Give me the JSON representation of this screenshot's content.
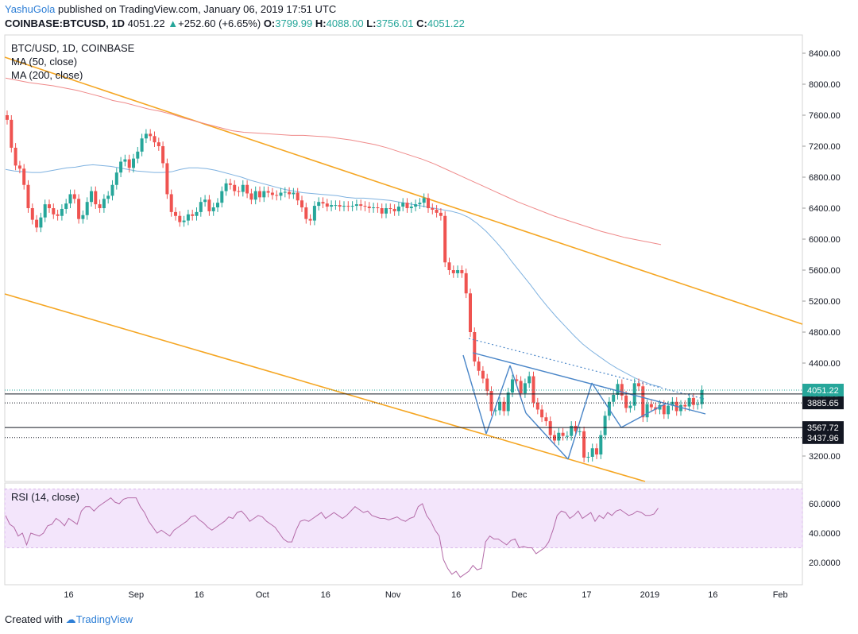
{
  "header": {
    "author": "YashuGola",
    "published_text": "published on TradingView.com, January 06, 2019 17:51 UTC",
    "symbol": "COINBASE:BTCUSD,",
    "timeframe": "1D",
    "last": "4051.22",
    "change": "+252.60 (+6.65%)",
    "o_label": "O:",
    "o": "3799.99",
    "h_label": "H:",
    "h": "4088.00",
    "l_label": "L:",
    "l": "3756.01",
    "c_label": "C:",
    "c": "4051.22"
  },
  "legend": {
    "title": "BTC/USD, 1D, COINBASE",
    "ma50": "MA (50, close)",
    "ma200": "MA (200, close)",
    "rsi": "RSI (14, close)"
  },
  "footer": {
    "created_with": "Created with",
    "brand": "TradingView"
  },
  "colors": {
    "up": "#26a69a",
    "down": "#ef5350",
    "channel": "#f5a623",
    "ma50": "#7fb2e0",
    "ma200": "#ef8a8a",
    "pattern": "#4a86c8",
    "rsi_line": "#b46ba8",
    "rsi_band": "#f3e5fb",
    "price_tag": "#26a69a"
  },
  "chart_data": {
    "type": "candlestick",
    "price_axis": {
      "ticks": [
        "8400.00",
        "8000.00",
        "7600.00",
        "7200.00",
        "6800.00",
        "6400.00",
        "6000.00",
        "5600.00",
        "5200.00",
        "4800.00",
        "4400.00",
        "3200.00"
      ],
      "range": [
        2850,
        8600
      ]
    },
    "time_axis": {
      "ticks": [
        {
          "label": "16",
          "x": "Aug 16"
        },
        {
          "label": "Sep",
          "x": "Sep 1"
        },
        {
          "label": "16",
          "x": "Sep 16"
        },
        {
          "label": "Oct",
          "x": "Oct 1"
        },
        {
          "label": "16",
          "x": "Oct 16"
        },
        {
          "label": "Nov",
          "x": "Nov 1"
        },
        {
          "label": "16",
          "x": "Nov 16"
        },
        {
          "label": "Dec",
          "x": "Dec 1"
        },
        {
          "label": "17",
          "x": "Dec 17"
        },
        {
          "label": "2019",
          "x": "Jan 1"
        },
        {
          "label": "16",
          "x": "Jan 16"
        },
        {
          "label": "Feb",
          "x": "Feb 1"
        }
      ]
    },
    "start_date": "Aug 1",
    "horizontal_levels": [
      {
        "value": 4000.8,
        "label": "4000.80",
        "style": "solid"
      },
      {
        "value": 3885.65,
        "label": "3885.65",
        "style": "dotted"
      },
      {
        "value": 3567.72,
        "label": "3567.72",
        "style": "solid"
      },
      {
        "value": 3437.96,
        "label": "3437.96",
        "style": "dotted"
      }
    ],
    "last_price": {
      "value": 4051.22,
      "label": "4051.22"
    },
    "candles_close": [
      7540,
      7180,
      6950,
      6910,
      6700,
      6400,
      6250,
      6150,
      6280,
      6450,
      6400,
      6320,
      6300,
      6390,
      6460,
      6580,
      6520,
      6260,
      6310,
      6480,
      6620,
      6450,
      6400,
      6520,
      6560,
      6700,
      6860,
      7000,
      7030,
      6920,
      7040,
      7130,
      7300,
      7360,
      7330,
      7250,
      7200,
      6980,
      6580,
      6350,
      6300,
      6220,
      6240,
      6320,
      6300,
      6350,
      6480,
      6510,
      6360,
      6410,
      6470,
      6620,
      6720,
      6700,
      6620,
      6610,
      6700,
      6590,
      6510,
      6620,
      6540,
      6620,
      6600,
      6570,
      6560,
      6600,
      6610,
      6580,
      6600,
      6500,
      6410,
      6260,
      6240,
      6430,
      6480,
      6460,
      6420,
      6440,
      6440,
      6420,
      6430,
      6420,
      6430,
      6450,
      6430,
      6420,
      6400,
      6410,
      6400,
      6330,
      6400,
      6390,
      6360,
      6420,
      6470,
      6400,
      6420,
      6450,
      6470,
      6530,
      6400,
      6380,
      6340,
      6300,
      5700,
      5600,
      5560,
      5600,
      5560,
      5300,
      4800,
      4420,
      4300,
      4200,
      4040,
      3780,
      3790,
      3900,
      3780,
      4020,
      4190,
      4170,
      4010,
      4140,
      4230,
      3890,
      3800,
      3700,
      3650,
      3470,
      3400,
      3500,
      3460,
      3460,
      3590,
      3520,
      3520,
      3180,
      3190,
      3300,
      3220,
      3470,
      3720,
      3900,
      3990,
      4130,
      3980,
      3820,
      3850,
      4140,
      4100,
      3700,
      3870,
      3830,
      3800,
      3860,
      3740,
      3850,
      3900,
      3780,
      3860,
      3840,
      3950,
      3860,
      3870,
      4051
    ],
    "ma50": [
      6900,
      6880,
      6870,
      6860,
      6860,
      6880,
      6900,
      6920,
      6930,
      6950,
      6960,
      6950,
      6940,
      6920,
      6900,
      6880,
      6870,
      6860,
      6860,
      6870,
      6900,
      6920,
      6920,
      6910,
      6890,
      6860,
      6830,
      6800,
      6760,
      6730,
      6700,
      6670,
      6640,
      6620,
      6600,
      6590,
      6580,
      6570,
      6560,
      6540,
      6530,
      6530,
      6520,
      6510,
      6500,
      6480,
      6460,
      6440,
      6420,
      6400,
      6380,
      6360,
      6330,
      6280,
      6200,
      6100,
      5980,
      5850,
      5700,
      5560,
      5420,
      5270,
      5130,
      5000,
      4880,
      4760,
      4650,
      4560,
      4480,
      4400,
      4330,
      4270,
      4210,
      4160,
      4120,
      4090
    ],
    "ma200": [
      8080,
      8050,
      8020,
      8000,
      7980,
      7950,
      7920,
      7880,
      7840,
      7790,
      7760,
      7720,
      7680,
      7650,
      7610,
      7560,
      7520,
      7480,
      7440,
      7400,
      7380,
      7370,
      7360,
      7350,
      7340,
      7340,
      7330,
      7320,
      7300,
      7280,
      7250,
      7220,
      7180,
      7130,
      7080,
      7030,
      6970,
      6900,
      6830,
      6760,
      6690,
      6620,
      6550,
      6480,
      6420,
      6360,
      6300,
      6250,
      6200,
      6150,
      6100,
      6060,
      6020,
      5990,
      5960,
      5930
    ],
    "rsi": {
      "scale_ticks": [
        "60.0000",
        "40.0000",
        "20.0000"
      ],
      "range": [
        10,
        75
      ],
      "band": [
        30,
        70
      ],
      "values": [
        52,
        46,
        44,
        38,
        40,
        32,
        40,
        39,
        38,
        40,
        45,
        46,
        50,
        48,
        45,
        50,
        48,
        46,
        55,
        58,
        58,
        55,
        58,
        60,
        62,
        64,
        61,
        60,
        63,
        64,
        64,
        64,
        58,
        54,
        48,
        44,
        40,
        42,
        40,
        38,
        42,
        44,
        46,
        48,
        51,
        52,
        49,
        47,
        44,
        42,
        44,
        46,
        48,
        51,
        50,
        54,
        55,
        52,
        48,
        50,
        52,
        51,
        48,
        46,
        44,
        40,
        36,
        34,
        34,
        42,
        48,
        49,
        48,
        50,
        52,
        54,
        50,
        52,
        54,
        52,
        50,
        52,
        55,
        58,
        56,
        54,
        55,
        52,
        51,
        50,
        50,
        49,
        50,
        51,
        49,
        48,
        50,
        51,
        58,
        60,
        52,
        48,
        42,
        38,
        22,
        16,
        12,
        14,
        10,
        12,
        14,
        18,
        15,
        16,
        34,
        38,
        36,
        36,
        34,
        32,
        35,
        36,
        30,
        31,
        30,
        30,
        26,
        28,
        30,
        34,
        42,
        52,
        55,
        54,
        50,
        52,
        55,
        50,
        52,
        54,
        48,
        52,
        50,
        54,
        52,
        55,
        56,
        54,
        52,
        53,
        55,
        54,
        52,
        52,
        53,
        57
      ]
    }
  }
}
